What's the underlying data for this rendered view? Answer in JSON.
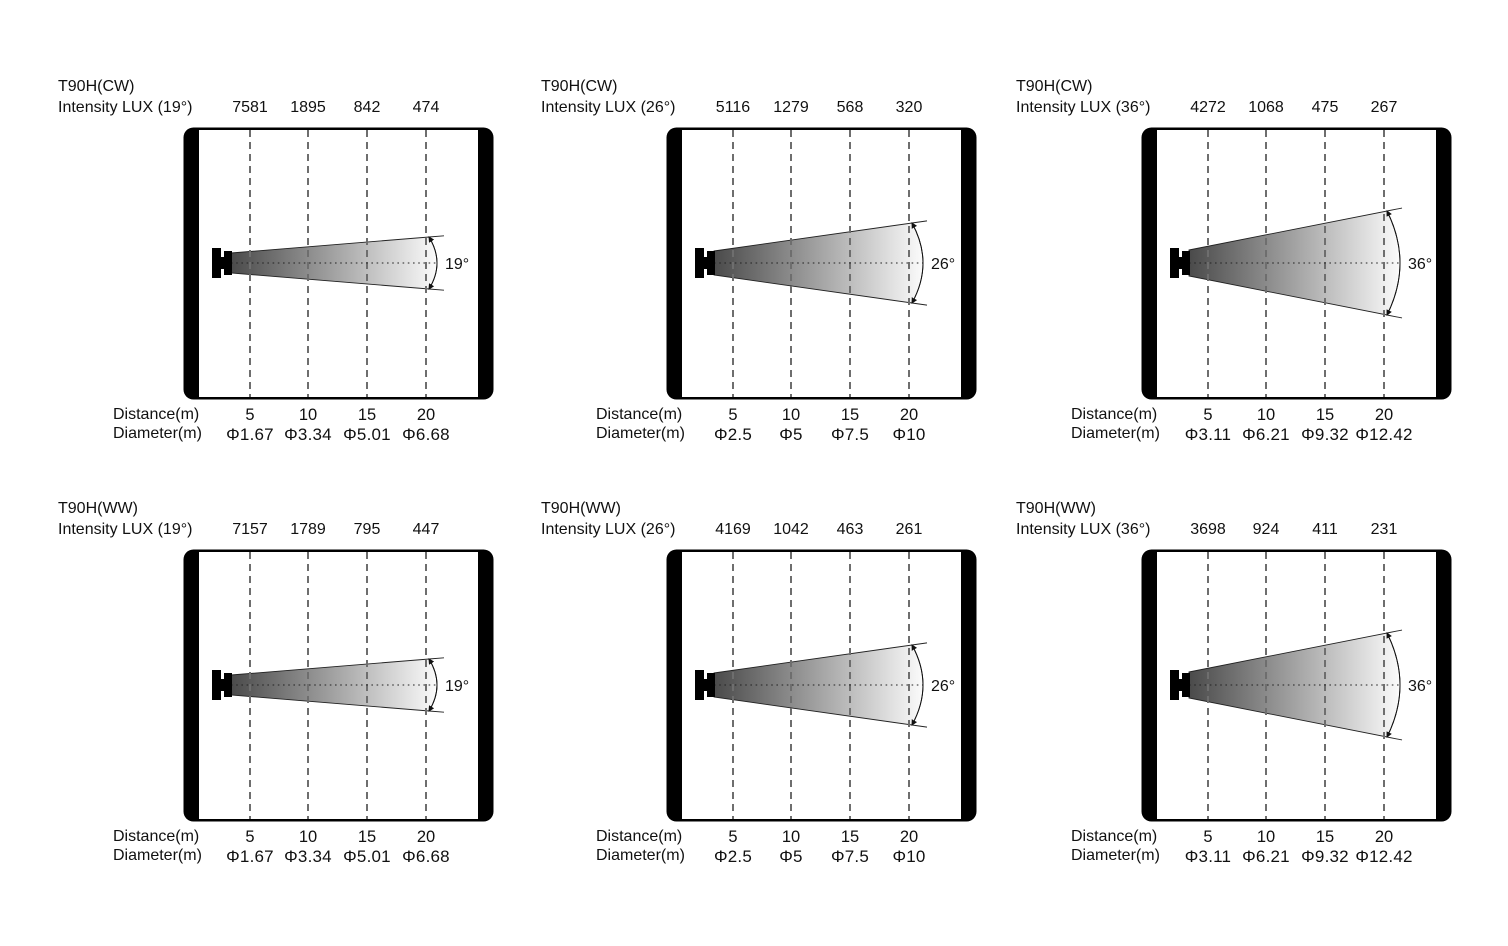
{
  "shared": {
    "distance_label": "Distance(m)",
    "diameter_label": "Diameter(m)"
  },
  "style": {
    "beam_gradient_start": "#4a4a4a",
    "beam_gradient_end": "#fbfbfb",
    "dash_color": "#6e6e6e",
    "text_color": "#111111"
  },
  "chart_data": [
    {
      "type": "beam-photometric",
      "model": "T90H(CW)",
      "intensity_label": "Intensity LUX (19°)",
      "beam_angle_deg": 19,
      "angle_label": "19°",
      "xlabel": "Distance(m)",
      "distances_m": [
        5,
        10,
        15,
        20
      ],
      "distance_display": [
        "5",
        "10",
        "15",
        "20"
      ],
      "intensity_lux": [
        7581,
        1895,
        842,
        474
      ],
      "intensity_display": [
        "7581",
        "1895",
        "842",
        "474"
      ],
      "diameter_m": [
        1.67,
        3.34,
        5.01,
        6.68
      ],
      "diameter_display": [
        "Φ1.67",
        "Φ3.34",
        "Φ5.01",
        "Φ6.68"
      ]
    },
    {
      "type": "beam-photometric",
      "model": "T90H(CW)",
      "intensity_label": "Intensity LUX (26°)",
      "beam_angle_deg": 26,
      "angle_label": "26°",
      "xlabel": "Distance(m)",
      "distances_m": [
        5,
        10,
        15,
        20
      ],
      "distance_display": [
        "5",
        "10",
        "15",
        "20"
      ],
      "intensity_lux": [
        5116,
        1279,
        568,
        320
      ],
      "intensity_display": [
        "5116",
        "1279",
        "568",
        "320"
      ],
      "diameter_m": [
        2.5,
        5,
        7.5,
        10
      ],
      "diameter_display": [
        "Φ2.5",
        "Φ5",
        "Φ7.5",
        "Φ10"
      ]
    },
    {
      "type": "beam-photometric",
      "model": "T90H(CW)",
      "intensity_label": "Intensity LUX (36°)",
      "beam_angle_deg": 36,
      "angle_label": "36°",
      "xlabel": "Distance(m)",
      "distances_m": [
        5,
        10,
        15,
        20
      ],
      "distance_display": [
        "5",
        "10",
        "15",
        "20"
      ],
      "intensity_lux": [
        4272,
        1068,
        475,
        267
      ],
      "intensity_display": [
        "4272",
        "1068",
        "475",
        "267"
      ],
      "diameter_m": [
        3.11,
        6.21,
        9.32,
        12.42
      ],
      "diameter_display": [
        "Φ3.11",
        "Φ6.21",
        "Φ9.32",
        "Φ12.42"
      ]
    },
    {
      "type": "beam-photometric",
      "model": "T90H(WW)",
      "intensity_label": "Intensity LUX (19°)",
      "beam_angle_deg": 19,
      "angle_label": "19°",
      "xlabel": "Distance(m)",
      "distances_m": [
        5,
        10,
        15,
        20
      ],
      "distance_display": [
        "5",
        "10",
        "15",
        "20"
      ],
      "intensity_lux": [
        7157,
        1789,
        795,
        447
      ],
      "intensity_display": [
        "7157",
        "1789",
        "795",
        "447"
      ],
      "diameter_m": [
        1.67,
        3.34,
        5.01,
        6.68
      ],
      "diameter_display": [
        "Φ1.67",
        "Φ3.34",
        "Φ5.01",
        "Φ6.68"
      ]
    },
    {
      "type": "beam-photometric",
      "model": "T90H(WW)",
      "intensity_label": "Intensity LUX (26°)",
      "beam_angle_deg": 26,
      "angle_label": "26°",
      "xlabel": "Distance(m)",
      "distances_m": [
        5,
        10,
        15,
        20
      ],
      "distance_display": [
        "5",
        "10",
        "15",
        "20"
      ],
      "intensity_lux": [
        4169,
        1042,
        463,
        261
      ],
      "intensity_display": [
        "4169",
        "1042",
        "463",
        "261"
      ],
      "diameter_m": [
        2.5,
        5,
        7.5,
        10
      ],
      "diameter_display": [
        "Φ2.5",
        "Φ5",
        "Φ7.5",
        "Φ10"
      ]
    },
    {
      "type": "beam-photometric",
      "model": "T90H(WW)",
      "intensity_label": "Intensity LUX (36°)",
      "beam_angle_deg": 36,
      "angle_label": "36°",
      "xlabel": "Distance(m)",
      "distances_m": [
        5,
        10,
        15,
        20
      ],
      "distance_display": [
        "5",
        "10",
        "15",
        "20"
      ],
      "intensity_lux": [
        3698,
        924,
        411,
        231
      ],
      "intensity_display": [
        "3698",
        "924",
        "411",
        "231"
      ],
      "diameter_m": [
        3.11,
        6.21,
        9.32,
        12.42
      ],
      "diameter_display": [
        "Φ3.11",
        "Φ6.21",
        "Φ9.32",
        "Φ12.42"
      ]
    }
  ]
}
